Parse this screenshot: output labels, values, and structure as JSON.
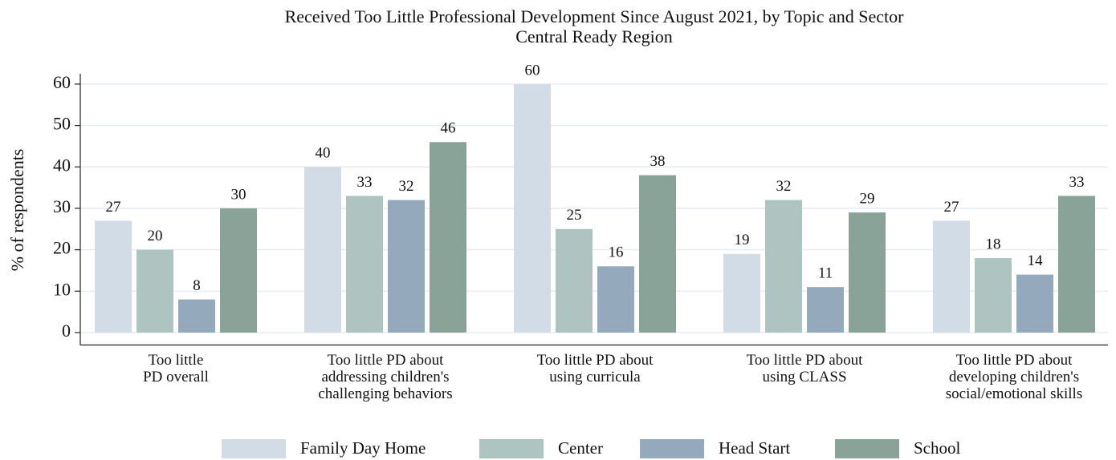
{
  "chart_data": {
    "type": "bar",
    "title": "Received Too Little Professional Development Since August 2021, by Topic and Sector",
    "subtitle": "Central Ready Region",
    "y_label": "% of respondents",
    "categories": [
      [
        "Too little",
        "PD overall"
      ],
      [
        "Too little PD about",
        "addressing children's",
        "challenging behaviors"
      ],
      [
        "Too little PD about",
        "using curricula"
      ],
      [
        "Too little PD about",
        "using CLASS"
      ],
      [
        "Too little PD about",
        "developing children's",
        "social/emotional skills"
      ]
    ],
    "series": [
      {
        "name": "Family Day Home",
        "color": "#d1dce6",
        "values": [
          27,
          40,
          60,
          19,
          27
        ]
      },
      {
        "name": "Center",
        "color": "#adc4c0",
        "values": [
          20,
          33,
          25,
          32,
          18
        ]
      },
      {
        "name": "Head Start",
        "color": "#95a9bc",
        "values": [
          8,
          32,
          16,
          11,
          14
        ]
      },
      {
        "name": "School",
        "color": "#8aa398",
        "values": [
          30,
          46,
          38,
          29,
          33
        ]
      }
    ],
    "ylim": [
      -3,
      62.5
    ],
    "yticks": [
      0,
      10,
      20,
      30,
      40,
      50,
      60
    ],
    "grid": true,
    "legend": "bottom"
  }
}
